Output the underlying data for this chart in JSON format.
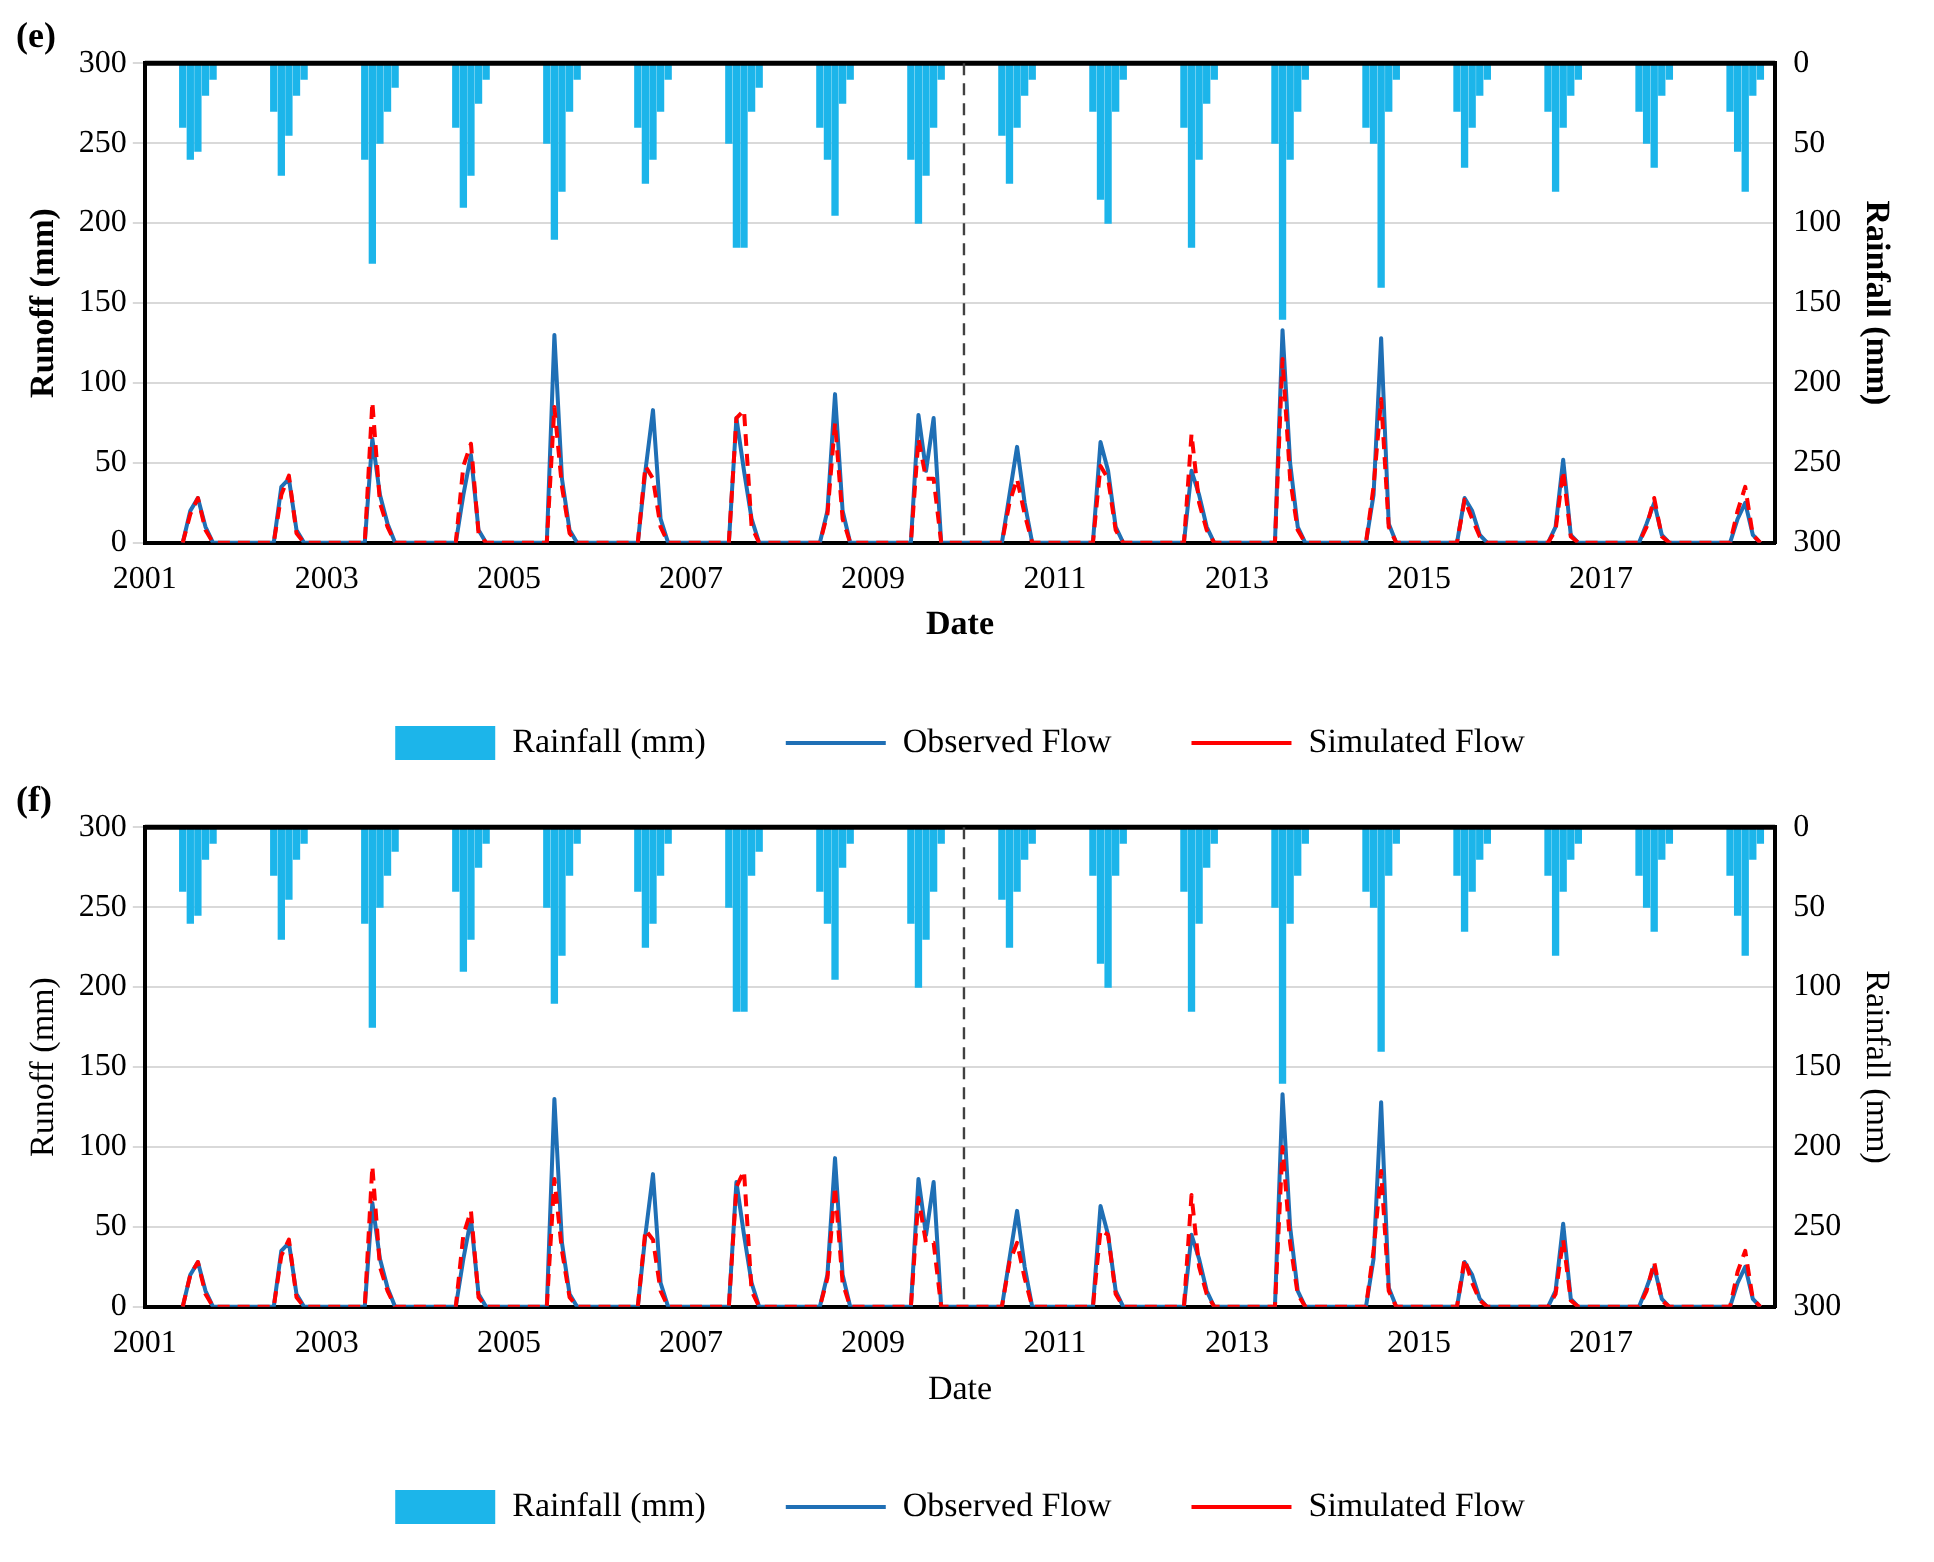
{
  "chart_data": [
    {
      "type": "bar",
      "title": "(e)",
      "xlabel": "Date",
      "ylabel": "Runoff (mm)",
      "y2label": "Rainfall (mm)",
      "x": [
        "2001-06",
        "2001-07",
        "2001-08",
        "2001-09",
        "2001-10",
        "2002-06",
        "2002-07",
        "2002-08",
        "2002-09",
        "2002-10",
        "2003-06",
        "2003-07",
        "2003-08",
        "2003-09",
        "2003-10",
        "2004-06",
        "2004-07",
        "2004-08",
        "2004-09",
        "2004-10",
        "2005-06",
        "2005-07",
        "2005-08",
        "2005-09",
        "2005-10",
        "2006-06",
        "2006-07",
        "2006-08",
        "2006-09",
        "2006-10",
        "2007-06",
        "2007-07",
        "2007-08",
        "2007-09",
        "2007-10",
        "2008-06",
        "2008-07",
        "2008-08",
        "2008-09",
        "2008-10",
        "2009-06",
        "2009-07",
        "2009-08",
        "2009-09",
        "2009-10",
        "2010-06",
        "2010-07",
        "2010-08",
        "2010-09",
        "2010-10",
        "2011-06",
        "2011-07",
        "2011-08",
        "2011-09",
        "2011-10",
        "2012-06",
        "2012-07",
        "2012-08",
        "2012-09",
        "2012-10",
        "2013-06",
        "2013-07",
        "2013-08",
        "2013-09",
        "2013-10",
        "2014-06",
        "2014-07",
        "2014-08",
        "2014-09",
        "2014-10",
        "2015-06",
        "2015-07",
        "2015-08",
        "2015-09",
        "2015-10",
        "2016-06",
        "2016-07",
        "2016-08",
        "2016-09",
        "2016-10",
        "2017-06",
        "2017-07",
        "2017-08",
        "2017-09",
        "2017-10",
        "2018-06",
        "2018-07",
        "2018-08",
        "2018-09",
        "2018-10"
      ],
      "series": [
        {
          "name": "Rainfall (mm)",
          "axis": "y2",
          "color": "#1cb5ea",
          "values": [
            40,
            60,
            55,
            20,
            10,
            30,
            70,
            45,
            20,
            10,
            60,
            125,
            50,
            30,
            15,
            40,
            90,
            70,
            25,
            10,
            50,
            110,
            80,
            30,
            10,
            40,
            75,
            60,
            30,
            10,
            50,
            115,
            115,
            30,
            15,
            40,
            60,
            95,
            25,
            10,
            60,
            100,
            70,
            40,
            10,
            45,
            75,
            40,
            20,
            10,
            30,
            85,
            100,
            30,
            10,
            40,
            115,
            60,
            25,
            10,
            50,
            160,
            60,
            30,
            10,
            40,
            50,
            140,
            30,
            10,
            30,
            65,
            40,
            20,
            10,
            30,
            80,
            40,
            20,
            10,
            30,
            50,
            65,
            20,
            10,
            30,
            55,
            80,
            20,
            10
          ]
        },
        {
          "name": "Observed Flow",
          "type": "line",
          "line_style": "solid",
          "color": "#1f6fb5",
          "values": [
            0,
            20,
            28,
            10,
            0,
            0,
            35,
            40,
            8,
            0,
            0,
            65,
            30,
            12,
            0,
            0,
            30,
            55,
            8,
            0,
            0,
            130,
            40,
            8,
            0,
            0,
            45,
            83,
            15,
            0,
            0,
            78,
            45,
            15,
            0,
            0,
            20,
            93,
            20,
            0,
            0,
            80,
            45,
            78,
            0,
            0,
            30,
            60,
            25,
            0,
            0,
            63,
            45,
            10,
            0,
            0,
            45,
            30,
            10,
            0,
            0,
            133,
            50,
            10,
            0,
            0,
            30,
            128,
            12,
            0,
            0,
            28,
            20,
            5,
            0,
            0,
            10,
            52,
            5,
            0,
            0,
            12,
            25,
            5,
            0,
            0,
            15,
            25,
            5,
            0
          ]
        },
        {
          "name": "Simulated Flow",
          "type": "line",
          "line_style": "dashed",
          "color": "#ff0000",
          "values": [
            0,
            18,
            28,
            8,
            0,
            0,
            30,
            42,
            6,
            0,
            0,
            88,
            25,
            10,
            0,
            0,
            48,
            62,
            6,
            0,
            0,
            85,
            35,
            6,
            0,
            0,
            48,
            40,
            10,
            0,
            0,
            78,
            83,
            10,
            0,
            0,
            18,
            75,
            15,
            0,
            0,
            65,
            40,
            40,
            0,
            0,
            25,
            40,
            18,
            0,
            0,
            48,
            40,
            8,
            0,
            0,
            68,
            25,
            8,
            0,
            0,
            115,
            40,
            8,
            0,
            0,
            35,
            90,
            10,
            0,
            0,
            27,
            15,
            4,
            0,
            0,
            8,
            45,
            4,
            0,
            0,
            10,
            28,
            4,
            0,
            0,
            20,
            35,
            5,
            0
          ]
        }
      ],
      "xlim": [
        "2001-01-01",
        "2018-11-30"
      ],
      "xticks": [
        "2001",
        "2003",
        "2005",
        "2007",
        "2009",
        "2011",
        "2013",
        "2015",
        "2017"
      ],
      "ylim": [
        0,
        300
      ],
      "yticks": [
        0,
        50,
        100,
        150,
        200,
        250,
        300
      ],
      "y2lim": [
        300,
        0
      ],
      "y2ticks": [
        0,
        50,
        100,
        150,
        200,
        250,
        300
      ],
      "ref_lines": [
        {
          "axis": "x",
          "value": "2010-01-01",
          "color": "#404040",
          "line_style": "dashed"
        }
      ],
      "grid": "y",
      "legend": "bottom",
      "marker": "none"
    },
    {
      "type": "bar",
      "title": "(f)",
      "xlabel": "Date",
      "ylabel": "Runoff (mm)",
      "y2label": "Rainfall (mm)",
      "x": [
        "2001-06",
        "2001-07",
        "2001-08",
        "2001-09",
        "2001-10",
        "2002-06",
        "2002-07",
        "2002-08",
        "2002-09",
        "2002-10",
        "2003-06",
        "2003-07",
        "2003-08",
        "2003-09",
        "2003-10",
        "2004-06",
        "2004-07",
        "2004-08",
        "2004-09",
        "2004-10",
        "2005-06",
        "2005-07",
        "2005-08",
        "2005-09",
        "2005-10",
        "2006-06",
        "2006-07",
        "2006-08",
        "2006-09",
        "2006-10",
        "2007-06",
        "2007-07",
        "2007-08",
        "2007-09",
        "2007-10",
        "2008-06",
        "2008-07",
        "2008-08",
        "2008-09",
        "2008-10",
        "2009-06",
        "2009-07",
        "2009-08",
        "2009-09",
        "2009-10",
        "2010-06",
        "2010-07",
        "2010-08",
        "2010-09",
        "2010-10",
        "2011-06",
        "2011-07",
        "2011-08",
        "2011-09",
        "2011-10",
        "2012-06",
        "2012-07",
        "2012-08",
        "2012-09",
        "2012-10",
        "2013-06",
        "2013-07",
        "2013-08",
        "2013-09",
        "2013-10",
        "2014-06",
        "2014-07",
        "2014-08",
        "2014-09",
        "2014-10",
        "2015-06",
        "2015-07",
        "2015-08",
        "2015-09",
        "2015-10",
        "2016-06",
        "2016-07",
        "2016-08",
        "2016-09",
        "2016-10",
        "2017-06",
        "2017-07",
        "2017-08",
        "2017-09",
        "2017-10",
        "2018-06",
        "2018-07",
        "2018-08",
        "2018-09",
        "2018-10"
      ],
      "series": [
        {
          "name": "Rainfall (mm)",
          "axis": "y2",
          "color": "#1cb5ea",
          "values": [
            40,
            60,
            55,
            20,
            10,
            30,
            70,
            45,
            20,
            10,
            60,
            125,
            50,
            30,
            15,
            40,
            90,
            70,
            25,
            10,
            50,
            110,
            80,
            30,
            10,
            40,
            75,
            60,
            30,
            10,
            50,
            115,
            115,
            30,
            15,
            40,
            60,
            95,
            25,
            10,
            60,
            100,
            70,
            40,
            10,
            45,
            75,
            40,
            20,
            10,
            30,
            85,
            100,
            30,
            10,
            40,
            115,
            60,
            25,
            10,
            50,
            160,
            60,
            30,
            10,
            40,
            50,
            140,
            30,
            10,
            30,
            65,
            40,
            20,
            10,
            30,
            80,
            40,
            20,
            10,
            30,
            50,
            65,
            20,
            10,
            30,
            55,
            80,
            20,
            10
          ]
        },
        {
          "name": "Observed Flow",
          "type": "line",
          "line_style": "solid",
          "color": "#1f6fb5",
          "values": [
            0,
            20,
            28,
            10,
            0,
            0,
            35,
            40,
            8,
            0,
            0,
            65,
            30,
            12,
            0,
            0,
            30,
            55,
            8,
            0,
            0,
            130,
            40,
            8,
            0,
            0,
            45,
            83,
            15,
            0,
            0,
            78,
            45,
            15,
            0,
            0,
            20,
            93,
            20,
            0,
            0,
            80,
            45,
            78,
            0,
            0,
            30,
            60,
            25,
            0,
            0,
            63,
            45,
            10,
            0,
            0,
            45,
            30,
            10,
            0,
            0,
            133,
            50,
            10,
            0,
            0,
            30,
            128,
            12,
            0,
            0,
            28,
            20,
            5,
            0,
            0,
            10,
            52,
            5,
            0,
            0,
            12,
            25,
            5,
            0,
            0,
            15,
            25,
            5,
            0
          ]
        },
        {
          "name": "Simulated Flow",
          "type": "line",
          "line_style": "dashed",
          "color": "#ff0000",
          "values": [
            0,
            20,
            28,
            8,
            0,
            0,
            32,
            42,
            6,
            0,
            0,
            88,
            25,
            10,
            0,
            0,
            45,
            60,
            6,
            0,
            0,
            80,
            35,
            6,
            0,
            0,
            48,
            42,
            10,
            0,
            0,
            75,
            85,
            10,
            0,
            0,
            18,
            75,
            15,
            0,
            0,
            68,
            40,
            40,
            0,
            0,
            28,
            40,
            18,
            0,
            0,
            48,
            45,
            8,
            0,
            0,
            70,
            25,
            8,
            0,
            0,
            100,
            40,
            8,
            0,
            0,
            35,
            85,
            10,
            0,
            0,
            30,
            15,
            4,
            0,
            0,
            8,
            42,
            4,
            0,
            0,
            10,
            28,
            4,
            0,
            0,
            22,
            35,
            5,
            0
          ]
        }
      ],
      "xlim": [
        "2001-01-01",
        "2018-11-30"
      ],
      "xticks": [
        "2001",
        "2003",
        "2005",
        "2007",
        "2009",
        "2011",
        "2013",
        "2015",
        "2017"
      ],
      "ylim": [
        0,
        300
      ],
      "yticks": [
        0,
        50,
        100,
        150,
        200,
        250,
        300
      ],
      "y2lim": [
        300,
        0
      ],
      "y2ticks": [
        0,
        50,
        100,
        150,
        200,
        250,
        300
      ],
      "ref_lines": [
        {
          "axis": "x",
          "value": "2010-01-01",
          "color": "#404040",
          "line_style": "dashed"
        }
      ],
      "grid": "y",
      "legend": "bottom",
      "marker": "none"
    }
  ]
}
